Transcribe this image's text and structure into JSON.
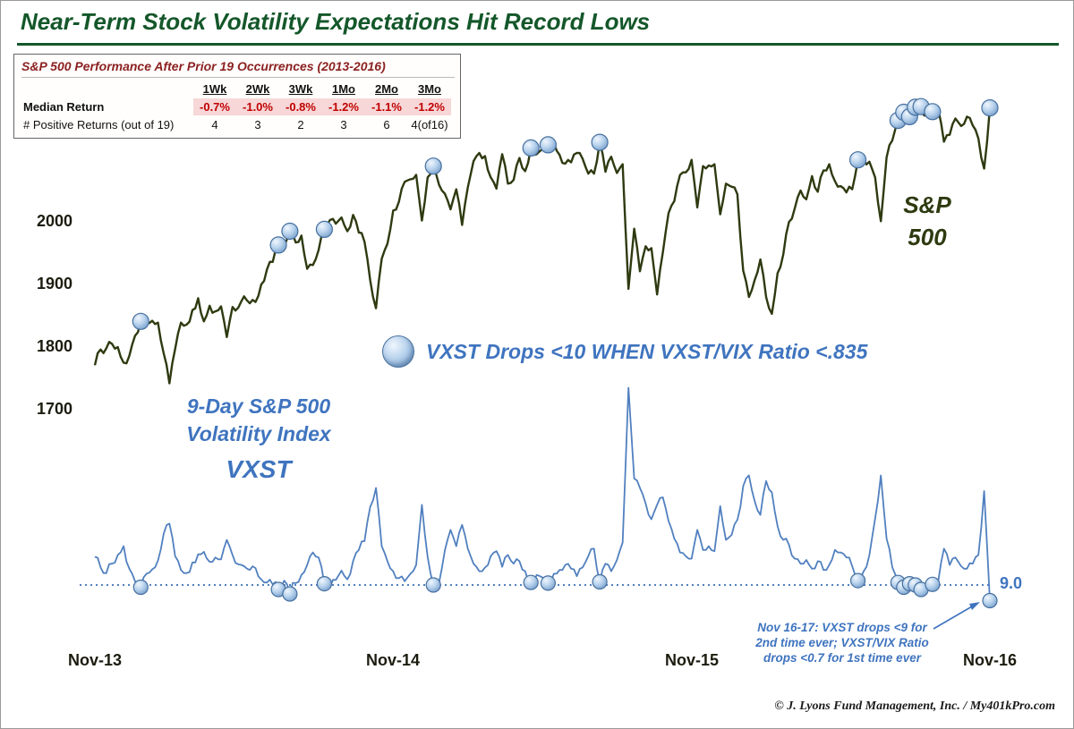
{
  "title": "Near-Term Stock Volatility Expectations Hit Record Lows",
  "stats_table": {
    "title": "S&P 500 Performance After Prior 19 Occurrences (2013-2016)",
    "columns": [
      "1Wk",
      "2Wk",
      "3Wk",
      "1Mo",
      "2Mo",
      "3Mo"
    ],
    "rows": [
      {
        "label": "Median Return",
        "values": [
          "-0.7%",
          "-1.0%",
          "-0.8%",
          "-1.2%",
          "-1.1%",
          "-1.2%"
        ],
        "highlight": true
      },
      {
        "label": "# Positive Returns (out of 19)",
        "values": [
          "4",
          "3",
          "2",
          "3",
          "6",
          "4(of16)"
        ],
        "highlight": false
      }
    ]
  },
  "legend": {
    "marker_icon": "sphere-marker",
    "label": "VXST Drops <10 WHEN VXST/VIX Ratio <.835"
  },
  "labels": {
    "sp_line1": "S&P",
    "sp_line2": "500",
    "vxst_line1": "9-Day S&P 500",
    "vxst_line2": "Volatility Index",
    "vxst_line3": "VXST",
    "reference": "9.0"
  },
  "annotation": {
    "lines": [
      "Nov 16-17: VXST drops <9 for",
      "2nd time ever; VXST/VIX Ratio",
      "drops <0.7 for 1st time ever"
    ]
  },
  "footer": "© J. Lyons Fund Management, Inc. / My401kPro.com",
  "colors": {
    "title_green": "#14572a",
    "sp_line": "#2e3a10",
    "vxst_line": "#5180bf",
    "blue_text": "#3f74bf",
    "marker_stroke": "#47709f",
    "table_title_maroon": "#8b2121",
    "negative_red": "#c00000",
    "negative_bg_pink": "#f7d7d7"
  },
  "chart_data": [
    {
      "type": "line",
      "name": "S&P 500",
      "x_unit": "weekly, Nov-2013 to Nov-2016",
      "x_tick_labels": [
        "Nov-13",
        "Nov-14",
        "Nov-15",
        "Nov-16"
      ],
      "x_tick_weeks": [
        0,
        52,
        104,
        156
      ],
      "y_ticks": [
        2000,
        1900,
        1800,
        1700
      ],
      "ylim": [
        1700,
        2220
      ],
      "grid": false,
      "markers_label": "VXST Drops <10 WHEN VXST/VIX Ratio <.835",
      "marker_weeks": [
        8,
        32,
        34,
        40,
        59,
        76,
        79,
        88,
        133,
        140,
        141,
        142,
        143,
        144,
        146,
        156
      ],
      "values": [
        1771,
        1796,
        1798,
        1805,
        1800,
        1775,
        1786,
        1818,
        1841,
        1838,
        1842,
        1839,
        1790,
        1742,
        1797,
        1839,
        1836,
        1859,
        1878,
        1841,
        1866,
        1857,
        1865,
        1816,
        1864,
        1863,
        1881,
        1870,
        1872,
        1900,
        1924,
        1936,
        1963,
        1961,
        1985,
        1967,
        1978,
        1925,
        1931,
        1955,
        1988,
        2003,
        1997,
        2007,
        1985,
        2011,
        1983,
        1968,
        1906,
        1862,
        1941,
        1965,
        2018,
        2032,
        2064,
        2068,
        2075,
        2002,
        2071,
        2089,
        2059,
        2045,
        2020,
        2052,
        1995,
        2055,
        2097,
        2110,
        2105,
        2071,
        2053,
        2108,
        2061,
        2067,
        2102,
        2081,
        2118,
        2108,
        2116,
        2123,
        2126,
        2107,
        2093,
        2095,
        2110,
        2101,
        2077,
        2077,
        2127,
        2080,
        2104,
        2078,
        2092,
        1893,
        1989,
        1921,
        1961,
        1958,
        1884,
        1951,
        2014,
        2033,
        2075,
        2079,
        2099,
        2023,
        2089,
        2090,
        2092,
        2012,
        2061,
        2056,
        2044,
        1922,
        1880,
        1907,
        1940,
        1880,
        1853,
        1918,
        1948,
        2000,
        2022,
        2050,
        2036,
        2073,
        2048,
        2082,
        2092,
        2065,
        2057,
        2047,
        2052,
        2099,
        2099,
        2096,
        2071,
        2001,
        2103,
        2130,
        2162,
        2175,
        2168,
        2183,
        2184,
        2169,
        2176,
        2180,
        2128,
        2139,
        2165,
        2153,
        2168,
        2154,
        2133,
        2085,
        2182
      ]
    },
    {
      "type": "line",
      "name": "VXST (9-Day S&P 500 Volatility Index)",
      "x_unit": "weekly, Nov-2013 to Nov-2016",
      "reference_line": 9.0,
      "reference_label": "9.0",
      "grid": false,
      "marker_weeks": [
        8,
        32,
        34,
        40,
        59,
        76,
        79,
        88,
        133,
        140,
        141,
        142,
        143,
        144,
        146,
        156
      ],
      "values": [
        13.5,
        11.8,
        10.9,
        12.4,
        13.8,
        15.2,
        11.6,
        9.6,
        8.9,
        10.8,
        11.5,
        12.9,
        17.2,
        18.8,
        13.6,
        11.4,
        10.9,
        12.6,
        13.9,
        14.3,
        12.7,
        13.4,
        13.1,
        16.2,
        13.8,
        12.3,
        12.0,
        11.4,
        11.7,
        9.9,
        9.4,
        9.1,
        8.8,
        9.7,
        8.6,
        9.3,
        10.6,
        12.2,
        14.2,
        13.4,
        9.2,
        8.9,
        9.8,
        11.3,
        9.9,
        12.8,
        14.6,
        16.0,
        21.5,
        24.5,
        15.2,
        12.8,
        11.2,
        10.1,
        9.6,
        10.8,
        12.2,
        21.8,
        13.5,
        9.0,
        9.4,
        14.5,
        17.8,
        15.2,
        18.6,
        14.8,
        12.4,
        11.2,
        11.8,
        13.6,
        14.4,
        11.9,
        13.8,
        12.4,
        12.8,
        11.2,
        9.4,
        10.6,
        10.2,
        9.3,
        10.8,
        11.4,
        12.2,
        11.6,
        10.4,
        11.8,
        13.6,
        14.8,
        9.5,
        12.4,
        11.2,
        13.0,
        15.8,
        40.5,
        26.0,
        24.5,
        22.0,
        19.5,
        21.8,
        23.0,
        19.2,
        16.4,
        14.2,
        13.6,
        13.2,
        17.8,
        14.6,
        15.2,
        14.4,
        21.6,
        16.2,
        17.0,
        19.4,
        24.8,
        26.5,
        22.4,
        20.2,
        25.6,
        23.8,
        18.4,
        16.2,
        15.4,
        13.2,
        12.4,
        13.0,
        11.6,
        12.8,
        11.4,
        12.2,
        14.6,
        14.2,
        13.4,
        12.0,
        9.7,
        11.2,
        13.8,
        19.6,
        26.5,
        16.4,
        11.8,
        9.4,
        8.9,
        9.2,
        9.0,
        8.8,
        9.4,
        9.1,
        9.6,
        14.8,
        12.2,
        13.4,
        12.0,
        11.6,
        12.4,
        13.8,
        24.0,
        8.3
      ]
    }
  ]
}
